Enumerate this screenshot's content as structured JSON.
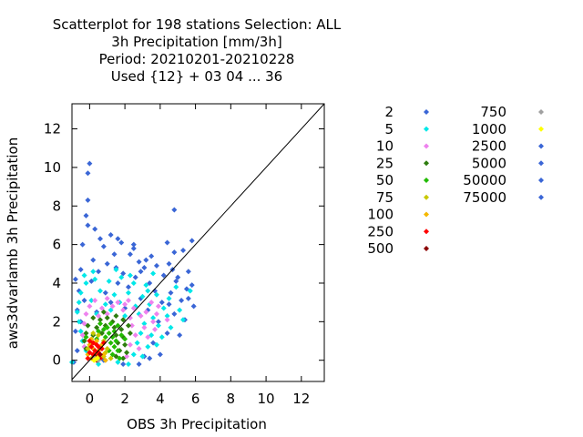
{
  "chart_data": {
    "type": "scatter",
    "title_lines": [
      "Scatterplot for  198 stations Selection: ALL",
      "3h Precipitation [mm/3h]",
      "Period: 20210201-20210228",
      "Used {12} + 03 04 ... 36"
    ],
    "xlabel": "OBS 3h Precipitation",
    "ylabel": "aws3dvarlamb 3h Precipitation",
    "xlim": [
      -1,
      13.3
    ],
    "ylim": [
      -1.1,
      13.3
    ],
    "xticks": [
      0,
      2,
      4,
      6,
      8,
      10,
      12
    ],
    "yticks": [
      0,
      2,
      4,
      6,
      8,
      10,
      12
    ],
    "diagonal": true,
    "grid": false,
    "legend_position": "right",
    "legend": [
      {
        "label": "2",
        "color": "#3a66d6"
      },
      {
        "label": "5",
        "color": "#00e8e8"
      },
      {
        "label": "10",
        "color": "#ee82ee"
      },
      {
        "label": "25",
        "color": "#2e7d0e"
      },
      {
        "label": "50",
        "color": "#22bb00"
      },
      {
        "label": "75",
        "color": "#c8c800"
      },
      {
        "label": "100",
        "color": "#f5b800"
      },
      {
        "label": "250",
        "color": "#ff0000"
      },
      {
        "label": "500",
        "color": "#8b0000"
      },
      {
        "label": "750",
        "color": "#a0a0a0"
      },
      {
        "label": "1000",
        "color": "#ffff00"
      },
      {
        "label": "2500",
        "color": "#3a66d6"
      },
      {
        "label": "5000",
        "color": "#3a66d6"
      },
      {
        "label": "50000",
        "color": "#3a66d6"
      },
      {
        "label": "75000",
        "color": "#3a66d6"
      }
    ],
    "series": [
      {
        "label": "2",
        "color": "#3a66d6",
        "points": [
          [
            0,
            10.2
          ],
          [
            -0.1,
            9.7
          ],
          [
            -0.1,
            8.3
          ],
          [
            -0.2,
            7.5
          ],
          [
            4.8,
            7.8
          ],
          [
            -0.1,
            7.0
          ],
          [
            0.3,
            6.8
          ],
          [
            1.2,
            6.5
          ],
          [
            1.6,
            6.3
          ],
          [
            2.5,
            6.0
          ],
          [
            4.4,
            6.1
          ],
          [
            5.8,
            6.2
          ],
          [
            0.8,
            5.9
          ],
          [
            1.4,
            5.5
          ],
          [
            2.3,
            5.5
          ],
          [
            3.5,
            5.4
          ],
          [
            4.8,
            5.6
          ],
          [
            5.3,
            5.7
          ],
          [
            0.2,
            5.2
          ],
          [
            1.0,
            5.0
          ],
          [
            2.8,
            5.1
          ],
          [
            3.8,
            4.9
          ],
          [
            4.5,
            5.0
          ],
          [
            -0.5,
            4.7
          ],
          [
            0.5,
            4.6
          ],
          [
            1.9,
            4.5
          ],
          [
            3.1,
            4.8
          ],
          [
            4.2,
            4.4
          ],
          [
            5.6,
            4.6
          ],
          [
            -0.8,
            4.2
          ],
          [
            0.1,
            4.1
          ],
          [
            1.6,
            4.0
          ],
          [
            2.6,
            4.3
          ],
          [
            3.4,
            4.0
          ],
          [
            4.9,
            4.1
          ],
          [
            5.8,
            3.9
          ],
          [
            -0.6,
            3.6
          ],
          [
            0.9,
            3.5
          ],
          [
            2.2,
            3.8
          ],
          [
            3.7,
            3.6
          ],
          [
            4.6,
            3.5
          ],
          [
            5.5,
            3.7
          ],
          [
            -0.3,
            3.1
          ],
          [
            1.2,
            3.0
          ],
          [
            2.9,
            3.2
          ],
          [
            4.1,
            3.0
          ],
          [
            5.2,
            3.1
          ],
          [
            -0.7,
            2.6
          ],
          [
            0.4,
            2.5
          ],
          [
            2.0,
            2.7
          ],
          [
            3.3,
            2.6
          ],
          [
            4.8,
            2.4
          ],
          [
            5.9,
            2.8
          ],
          [
            -0.5,
            2.0
          ],
          [
            3.9,
            2.0
          ],
          [
            5.4,
            2.1
          ],
          [
            -0.8,
            1.5
          ],
          [
            4.4,
            1.4
          ],
          [
            5.1,
            1.3
          ],
          [
            -0.4,
            1.0
          ],
          [
            3.6,
            0.9
          ],
          [
            4.0,
            0.3
          ],
          [
            3.1,
            0.2
          ],
          [
            2.8,
            -0.2
          ],
          [
            -0.7,
            0.5
          ],
          [
            -0.9,
            -0.1
          ],
          [
            0.8,
            0.0
          ],
          [
            1.9,
            -0.2
          ],
          [
            3.4,
            0.1
          ],
          [
            5.6,
            3.2
          ],
          [
            4.5,
            2.9
          ],
          [
            2.5,
            5.8
          ],
          [
            1.8,
            6.1
          ],
          [
            0.6,
            6.3
          ],
          [
            -0.4,
            6.0
          ],
          [
            2.9,
            4.6
          ],
          [
            3.2,
            5.2
          ],
          [
            4.7,
            4.7
          ],
          [
            5.0,
            4.3
          ],
          [
            1.5,
            4.8
          ]
        ]
      },
      {
        "label": "5",
        "color": "#00e8e8",
        "points": [
          [
            -0.2,
            4.0
          ],
          [
            0.3,
            4.2
          ],
          [
            1.1,
            4.1
          ],
          [
            1.8,
            4.3
          ],
          [
            2.5,
            4.0
          ],
          [
            3.2,
            3.9
          ],
          [
            -0.5,
            3.5
          ],
          [
            0.6,
            3.6
          ],
          [
            1.4,
            3.4
          ],
          [
            2.2,
            3.5
          ],
          [
            3.0,
            3.3
          ],
          [
            3.8,
            3.4
          ],
          [
            4.5,
            3.2
          ],
          [
            -0.6,
            3.0
          ],
          [
            0.1,
            3.1
          ],
          [
            0.9,
            2.9
          ],
          [
            1.7,
            3.0
          ],
          [
            2.6,
            2.8
          ],
          [
            3.4,
            2.9
          ],
          [
            4.2,
            2.7
          ],
          [
            5.1,
            2.6
          ],
          [
            -0.7,
            2.5
          ],
          [
            0.4,
            2.4
          ],
          [
            1.2,
            2.6
          ],
          [
            2.0,
            2.3
          ],
          [
            2.8,
            2.4
          ],
          [
            3.6,
            2.2
          ],
          [
            4.4,
            2.3
          ],
          [
            -0.6,
            2.0
          ],
          [
            3.1,
            1.9
          ],
          [
            3.9,
            1.8
          ],
          [
            4.6,
            1.7
          ],
          [
            -0.5,
            1.5
          ],
          [
            2.9,
            1.4
          ],
          [
            3.5,
            1.3
          ],
          [
            4.1,
            1.2
          ],
          [
            -0.4,
            1.0
          ],
          [
            2.7,
            0.9
          ],
          [
            3.3,
            0.7
          ],
          [
            3.8,
            0.8
          ],
          [
            -0.2,
            0.5
          ],
          [
            2.5,
            0.3
          ],
          [
            3.0,
            0.2
          ],
          [
            -1.0,
            -0.1
          ],
          [
            0.5,
            -0.2
          ],
          [
            1.6,
            -0.1
          ],
          [
            2.2,
            -0.2
          ],
          [
            5.7,
            3.6
          ],
          [
            5.3,
            2.1
          ],
          [
            0.2,
            4.6
          ],
          [
            1.5,
            4.7
          ],
          [
            2.3,
            4.4
          ],
          [
            3.6,
            4.5
          ],
          [
            -0.3,
            4.4
          ],
          [
            4.9,
            3.8
          ],
          [
            3.3,
            3.6
          ]
        ]
      },
      {
        "label": "10",
        "color": "#ee82ee",
        "points": [
          [
            0.3,
            3.1
          ],
          [
            1.0,
            3.2
          ],
          [
            1.6,
            3.0
          ],
          [
            2.2,
            3.1
          ],
          [
            3.5,
            3.0
          ],
          [
            0.0,
            2.8
          ],
          [
            0.7,
            2.7
          ],
          [
            1.3,
            2.8
          ],
          [
            1.9,
            2.6
          ],
          [
            2.5,
            2.7
          ],
          [
            3.2,
            2.5
          ],
          [
            3.8,
            2.4
          ],
          [
            -0.2,
            2.4
          ],
          [
            0.5,
            2.3
          ],
          [
            1.0,
            2.4
          ],
          [
            2.3,
            2.2
          ],
          [
            2.9,
            2.3
          ],
          [
            3.6,
            2.0
          ],
          [
            -0.3,
            1.9
          ],
          [
            2.4,
            1.8
          ],
          [
            3.1,
            1.7
          ],
          [
            3.7,
            1.6
          ],
          [
            2.6,
            1.3
          ],
          [
            3.3,
            1.2
          ],
          [
            2.3,
            0.8
          ],
          [
            2.8,
            0.6
          ],
          [
            -0.4,
            1.3
          ],
          [
            -0.3,
            0.7
          ],
          [
            2.1,
            0.2
          ],
          [
            3.9,
            2.8
          ],
          [
            4.4,
            2.1
          ],
          [
            2.0,
            2.9
          ]
        ]
      },
      {
        "label": "25",
        "color": "#2e7d0e",
        "points": [
          [
            0.2,
            2.2
          ],
          [
            0.6,
            2.1
          ],
          [
            1.0,
            2.2
          ],
          [
            1.5,
            2.3
          ],
          [
            1.9,
            2.1
          ],
          [
            -0.1,
            1.8
          ],
          [
            0.4,
            1.7
          ],
          [
            0.9,
            1.8
          ],
          [
            1.4,
            1.7
          ],
          [
            1.8,
            1.6
          ],
          [
            2.2,
            1.8
          ],
          [
            -0.2,
            1.4
          ],
          [
            0.2,
            1.3
          ],
          [
            1.5,
            1.3
          ],
          [
            1.9,
            1.2
          ],
          [
            2.3,
            1.4
          ],
          [
            -0.3,
            1.0
          ],
          [
            1.6,
            0.9
          ],
          [
            2.0,
            0.8
          ],
          [
            -0.2,
            0.6
          ],
          [
            1.7,
            0.5
          ],
          [
            2.1,
            0.4
          ],
          [
            1.5,
            0.2
          ],
          [
            1.9,
            0.1
          ],
          [
            0.8,
            2.5
          ],
          [
            1.3,
            2.0
          ],
          [
            0.7,
            1.4
          ]
        ]
      },
      {
        "label": "50",
        "color": "#22bb00",
        "points": [
          [
            0.6,
            1.9
          ],
          [
            1.0,
            1.7
          ],
          [
            1.2,
            1.9
          ],
          [
            1.4,
            1.5
          ],
          [
            1.6,
            1.8
          ],
          [
            0.5,
            1.5
          ],
          [
            0.8,
            1.6
          ],
          [
            1.1,
            1.4
          ],
          [
            1.3,
            1.2
          ],
          [
            1.5,
            1.0
          ],
          [
            0.4,
            1.1
          ],
          [
            1.2,
            0.9
          ],
          [
            1.4,
            0.7
          ],
          [
            1.6,
            0.5
          ],
          [
            1.3,
            0.3
          ],
          [
            1.7,
            0.1
          ],
          [
            0.1,
            0.9
          ],
          [
            0.9,
            1.2
          ],
          [
            -0.2,
            1.2
          ],
          [
            1.8,
            1.3
          ],
          [
            2.0,
            1.1
          ],
          [
            1.1,
            0.5
          ]
        ]
      },
      {
        "label": "75",
        "color": "#c8c800",
        "points": [
          [
            0.2,
            1.4
          ],
          [
            0.5,
            1.3
          ],
          [
            0.8,
            1.0
          ],
          [
            0.3,
            0.9
          ],
          [
            0.6,
            0.7
          ],
          [
            1.0,
            0.6
          ],
          [
            0.4,
            0.4
          ],
          [
            0.8,
            0.2
          ],
          [
            0.1,
            0.1
          ],
          [
            1.2,
            0.1
          ],
          [
            0.9,
            0.4
          ],
          [
            -0.1,
            0.6
          ]
        ]
      },
      {
        "label": "100",
        "color": "#f5b800",
        "points": [
          [
            0.1,
            1.1
          ],
          [
            0.4,
            1.0
          ],
          [
            0.7,
            0.8
          ],
          [
            0.2,
            0.6
          ],
          [
            0.5,
            0.5
          ],
          [
            0.8,
            0.3
          ],
          [
            0.3,
            0.2
          ],
          [
            0.6,
            0.1
          ],
          [
            0.9,
            0.0
          ],
          [
            -0.1,
            0.3
          ],
          [
            0.0,
            0.8
          ]
        ]
      },
      {
        "label": "250",
        "color": "#ff0000",
        "points": [
          [
            0.0,
            1.0
          ],
          [
            0.2,
            0.9
          ],
          [
            0.4,
            0.8
          ],
          [
            0.1,
            0.7
          ],
          [
            0.3,
            0.5
          ],
          [
            0.5,
            0.4
          ],
          [
            0.2,
            0.3
          ],
          [
            0.4,
            0.2
          ],
          [
            0.6,
            0.1
          ],
          [
            0.7,
            0.6
          ],
          [
            0.0,
            0.4
          ],
          [
            -0.1,
            0.1
          ],
          [
            0.8,
            0.9
          ],
          [
            0.5,
            0.7
          ]
        ]
      },
      {
        "label": "500",
        "color": "#8b0000",
        "points": [
          [
            0.3,
            0.2
          ],
          [
            0.5,
            0.1
          ],
          [
            0.4,
            0.0
          ],
          [
            0.2,
            0.1
          ],
          [
            0.6,
            0.3
          ]
        ]
      },
      {
        "label": "750",
        "color": "#a0a0a0",
        "points": [
          [
            0.3,
            0.1
          ],
          [
            0.5,
            0.0
          ]
        ]
      },
      {
        "label": "1000",
        "color": "#ffff00",
        "points": [
          [
            0.35,
            0.05
          ],
          [
            0.45,
            0.12
          ],
          [
            0.25,
            0.0
          ]
        ]
      }
    ]
  }
}
